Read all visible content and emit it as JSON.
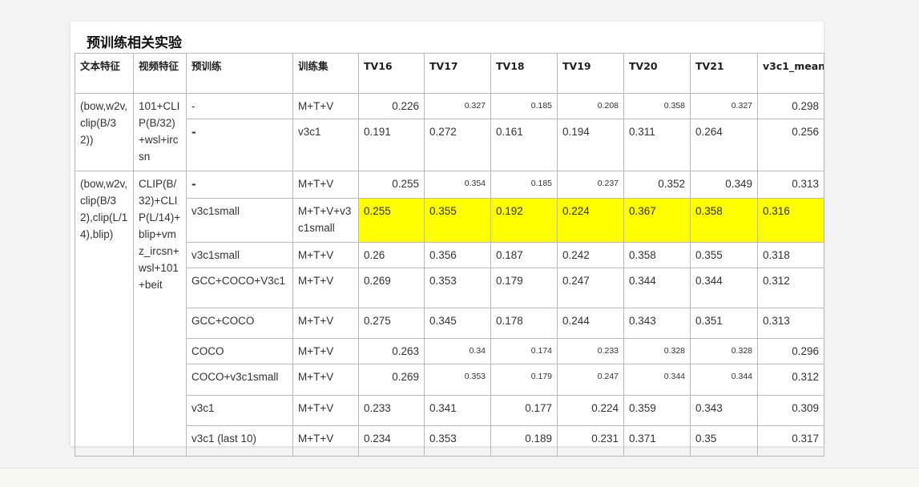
{
  "title": "预训练相关实验",
  "headers": [
    "文本特征",
    "视频特征",
    "预训练",
    "训练集",
    "TV16",
    "TV17",
    "TV18",
    "TV19",
    "TV20",
    "TV21",
    "v3c1_mean"
  ],
  "groups": [
    {
      "text_feature": "(bow,w2v,clip(B/32))",
      "video_feature": "101+CLIP(B/32)+wsl+ircsn",
      "rows": [
        {
          "pretrain": "-",
          "train_set": "M+T+V",
          "values": [
            "0.226",
            "0.327",
            "0.185",
            "0.208",
            "0.358",
            "0.327",
            "0.298"
          ]
        },
        {
          "pretrain": "-",
          "train_set": "v3c1",
          "values": [
            "0.191",
            "0.272",
            "0.161",
            "0.194",
            "0.311",
            "0.264",
            "0.256"
          ]
        }
      ]
    },
    {
      "text_feature": "(bow,w2v,clip(B/32),clip(L/14),blip)",
      "video_feature": "CLIP(B/32)+CLIP(L/14)+blip+vmz_ircsn+wsl+101+beit",
      "rows": [
        {
          "pretrain": "-",
          "train_set": "M+T+V",
          "values": [
            "0.255",
            "0.354",
            "0.185",
            "0.237",
            "0.352",
            "0.349",
            "0.313"
          ]
        },
        {
          "pretrain": "v3c1small",
          "train_set": "M+T+V+v3c1small",
          "values": [
            "0.255",
            "0.355",
            "0.192",
            "0.224",
            "0.367",
            "0.358",
            "0.316"
          ]
        },
        {
          "pretrain": "v3c1small",
          "train_set": "M+T+V",
          "values": [
            "0.26",
            "0.356",
            "0.187",
            "0.242",
            "0.358",
            "0.355",
            "0.318"
          ]
        },
        {
          "pretrain": "GCC+COCO+V3c1",
          "train_set": "M+T+V",
          "values": [
            "0.269",
            "0.353",
            "0.179",
            "0.247",
            "0.344",
            "0.344",
            "0.312"
          ]
        },
        {
          "pretrain": "GCC+COCO",
          "train_set": "M+T+V",
          "values": [
            "0.275",
            "0.345",
            "0.178",
            "0.244",
            "0.343",
            "0.351",
            "0.313"
          ]
        },
        {
          "pretrain": "COCO",
          "train_set": "M+T+V",
          "values": [
            "0.263",
            "0.34",
            "0.174",
            "0.233",
            "0.328",
            "0.328",
            "0.296"
          ]
        },
        {
          "pretrain": "COCO+v3c1small",
          "train_set": "M+T+V",
          "values": [
            "0.269",
            "0.353",
            "0.179",
            "0.247",
            "0.344",
            "0.344",
            "0.312"
          ]
        },
        {
          "pretrain": "v3c1",
          "train_set": "M+T+V",
          "values": [
            "0.233",
            "0.341",
            "0.177",
            "0.224",
            "0.359",
            "0.343",
            "0.309"
          ]
        },
        {
          "pretrain": "v3c1 (last 10)",
          "train_set": "M+T+V",
          "values": [
            "0.234",
            "0.353",
            "0.189",
            "0.231",
            "0.371",
            "0.35",
            "0.317"
          ]
        }
      ]
    }
  ],
  "highlight_color": "#ffff00"
}
